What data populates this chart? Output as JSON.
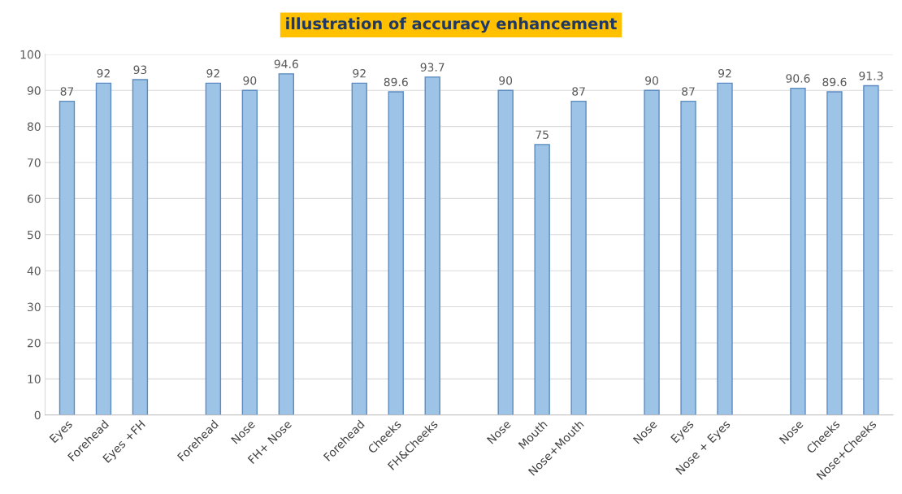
{
  "chart_data": {
    "type": "bar",
    "title": "illustration of accuracy enhancement",
    "categories": [
      "Eyes",
      "Forehead",
      "Eyes +FH",
      null,
      "Forehead",
      "Nose",
      "FH+ Nose",
      null,
      "Forehead",
      "Cheeks",
      "FH&Cheeks",
      null,
      "Nose",
      "Mouth",
      "Nose+Mouth",
      null,
      "Nose",
      "Eyes",
      "Nose + Eyes",
      null,
      "Nose",
      "Cheeks",
      "Nose+Cheeks"
    ],
    "values": [
      87,
      92,
      93,
      null,
      92,
      90,
      94.6,
      null,
      92,
      89.6,
      93.7,
      null,
      90,
      75,
      87,
      null,
      90,
      87,
      92,
      null,
      90.6,
      89.6,
      91.3
    ],
    "color": "#9dc3e6",
    "ylim": [
      0,
      100
    ],
    "yticks": [
      0,
      10,
      20,
      30,
      40,
      50,
      60,
      70,
      80,
      90,
      100
    ],
    "grid": "y",
    "data_labels": true
  }
}
